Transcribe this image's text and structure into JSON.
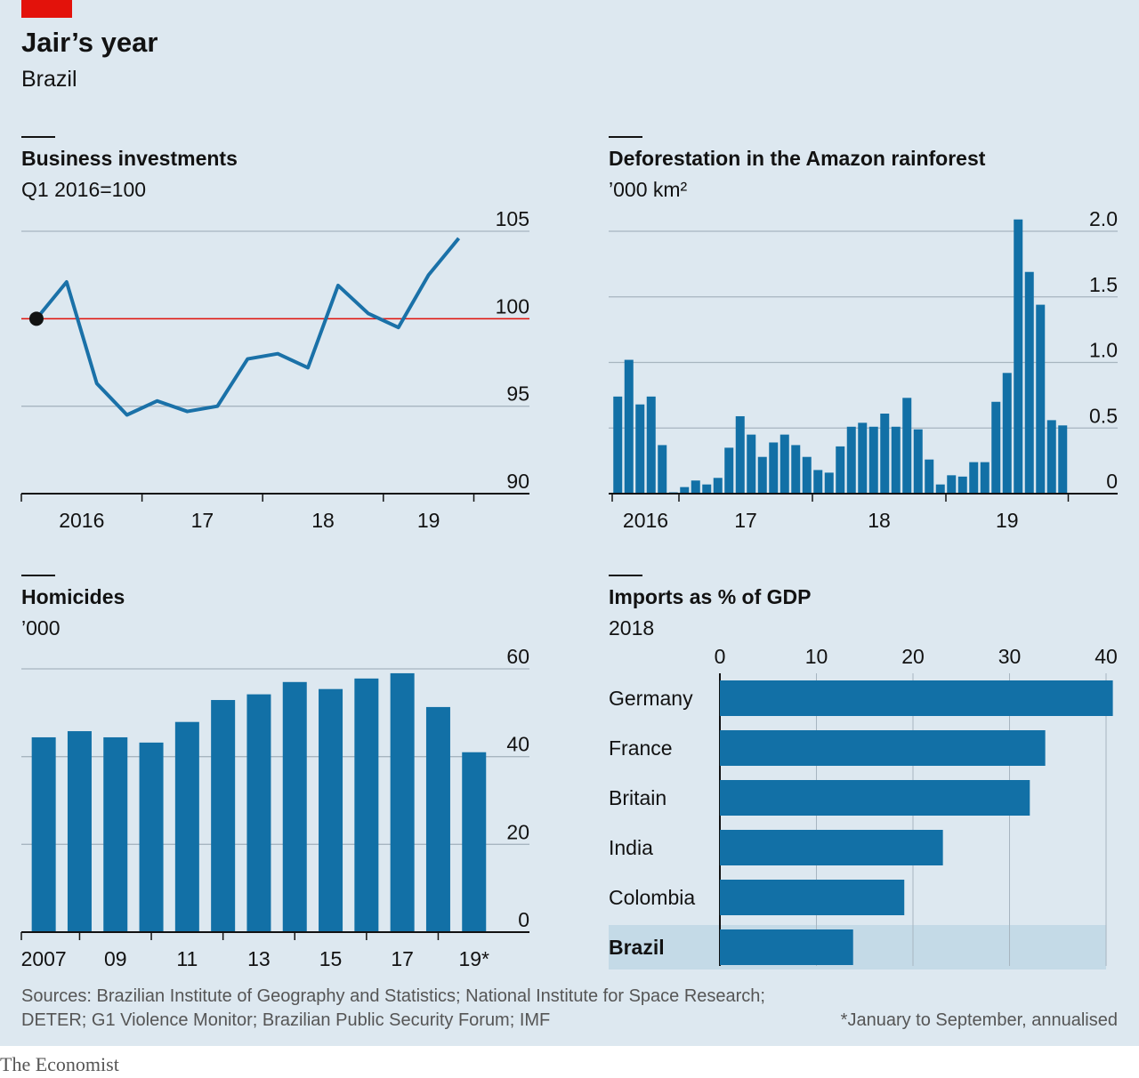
{
  "title": "Jair’s year",
  "subtitle": "Brazil",
  "sources": [
    "Sources: Brazilian Institute of Geography and Statistics; National Institute for Space Research;",
    "DETER; G1 Violence Monitor; Brazilian Public Security Forum; IMF"
  ],
  "note": "*January to September, annualised",
  "brand": "The Economist",
  "chart_data": [
    {
      "type": "line",
      "title": "Business investments",
      "subtitle": "Q1 2016=100",
      "color": "#1a71a8",
      "categories": [
        "2016",
        null,
        null,
        null,
        "17",
        null,
        null,
        null,
        "18",
        null,
        null,
        null,
        "19",
        null,
        null
      ],
      "values": [
        100,
        102.1,
        96.3,
        94.5,
        95.3,
        94.7,
        95.0,
        97.7,
        98.0,
        97.2,
        101.9,
        100.3,
        99.5,
        102.5,
        104.6
      ],
      "reference_line": 100,
      "reference_color": "#e3120b",
      "ylim": [
        90,
        105
      ],
      "yticks": [
        90,
        95,
        100,
        105
      ],
      "grid": true
    },
    {
      "type": "bar",
      "title": "Deforestation in the Amazon rainforest",
      "subtitle": "’000 km²",
      "color": "#1270a6",
      "categories": [
        "2016",
        null,
        null,
        null,
        null,
        null,
        "17",
        null,
        null,
        null,
        null,
        null,
        null,
        null,
        null,
        null,
        null,
        null,
        "18",
        null,
        null,
        null,
        null,
        null,
        null,
        null,
        null,
        null,
        null,
        null,
        "19",
        null,
        null,
        null,
        null,
        null,
        null,
        null,
        null,
        null,
        null
      ],
      "values": [
        0.74,
        1.02,
        0.68,
        0.74,
        0.37,
        0.01,
        0.05,
        0.1,
        0.07,
        0.12,
        0.35,
        0.59,
        0.45,
        0.28,
        0.39,
        0.45,
        0.37,
        0.28,
        0.18,
        0.16,
        0.36,
        0.51,
        0.54,
        0.51,
        0.61,
        0.51,
        0.73,
        0.49,
        0.26,
        0.07,
        0.14,
        0.13,
        0.24,
        0.24,
        0.7,
        0.92,
        2.09,
        1.69,
        1.44,
        0.56,
        0.52
      ],
      "ylim": [
        0,
        2
      ],
      "yticks": [
        0,
        0.5,
        {
          "value": 1,
          "label": "1.0"
        },
        1.5,
        {
          "value": 2,
          "label": "2.0"
        }
      ],
      "grid": true
    },
    {
      "type": "bar",
      "title": "Homicides",
      "subtitle": "’000",
      "color": "#1270a6",
      "categories": [
        "2007",
        null,
        "09",
        null,
        "11",
        null,
        "13",
        null,
        "15",
        null,
        "17",
        null,
        "19*"
      ],
      "values": [
        44.4,
        45.8,
        44.4,
        43.2,
        47.9,
        52.9,
        54.2,
        57.0,
        55.4,
        57.8,
        59.0,
        51.3,
        41.0
      ],
      "ylim": [
        0,
        60
      ],
      "yticks": [
        0,
        20,
        40,
        60
      ],
      "grid": true
    },
    {
      "type": "barh",
      "title": "Imports as % of GDP",
      "subtitle": "2018",
      "color": "#1270a6",
      "highlight": "Brazil",
      "highlight_color": "#c4dae7",
      "categories": [
        "Germany",
        "France",
        "Britain",
        "India",
        "Colombia",
        "Brazil"
      ],
      "values": [
        40.7,
        33.7,
        32.1,
        23.1,
        19.1,
        13.8
      ],
      "xlim": [
        0,
        40
      ],
      "xticks": [
        0,
        10,
        20,
        30,
        40
      ],
      "grid": true
    }
  ]
}
